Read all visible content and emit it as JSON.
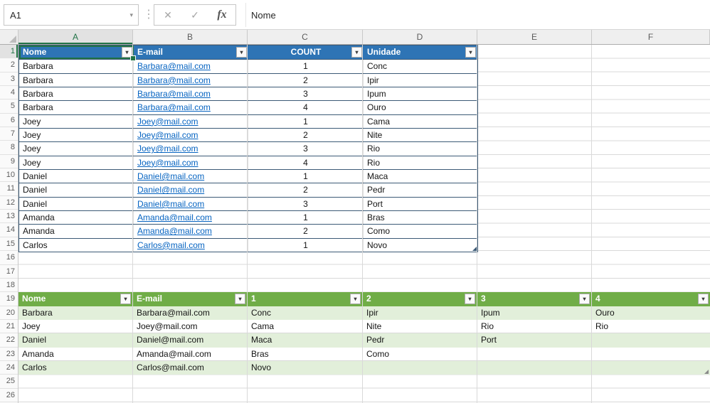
{
  "toolbar": {
    "name_box_value": "A1",
    "formula_value": "Nome",
    "cancel_label": "✕",
    "confirm_label": "✓",
    "insert_function_label": "fx"
  },
  "icons": {
    "dropdown_arrow": "▾"
  },
  "sheet": {
    "columns": [
      "A",
      "B",
      "C",
      "D",
      "E",
      "F"
    ],
    "row_count": 26,
    "selected_column": "A",
    "selected_row": 1,
    "selected_cell": "A1"
  },
  "colors": {
    "table1_header": "#2E74B5",
    "table1_border": "#3C5A76",
    "table2_header": "#70AD47",
    "table2_band": "#E2EFDA",
    "hyperlink": "#0563C1",
    "selection": "#217346",
    "gridline": "#D9D9D9"
  },
  "table1": {
    "headers": [
      {
        "label": "Nome"
      },
      {
        "label": "E-mail"
      },
      {
        "label": "COUNT"
      },
      {
        "label": "Unidade"
      }
    ],
    "rows": [
      {
        "nome": "Barbara",
        "email": "Barbara@mail.com",
        "count": "1",
        "unidade": "Conc"
      },
      {
        "nome": "Barbara",
        "email": "Barbara@mail.com",
        "count": "2",
        "unidade": "Ipir"
      },
      {
        "nome": "Barbara",
        "email": "Barbara@mail.com",
        "count": "3",
        "unidade": "Ipum"
      },
      {
        "nome": "Barbara",
        "email": "Barbara@mail.com",
        "count": "4",
        "unidade": "Ouro"
      },
      {
        "nome": "Joey",
        "email": "Joey@mail.com",
        "count": "1",
        "unidade": "Cama"
      },
      {
        "nome": "Joey",
        "email": "Joey@mail.com",
        "count": "2",
        "unidade": "Nite"
      },
      {
        "nome": "Joey",
        "email": "Joey@mail.com",
        "count": "3",
        "unidade": "Rio"
      },
      {
        "nome": "Joey",
        "email": "Joey@mail.com",
        "count": "4",
        "unidade": "Rio"
      },
      {
        "nome": "Daniel",
        "email": "Daniel@mail.com",
        "count": "1",
        "unidade": "Maca"
      },
      {
        "nome": "Daniel",
        "email": "Daniel@mail.com",
        "count": "2",
        "unidade": "Pedr"
      },
      {
        "nome": "Daniel",
        "email": "Daniel@mail.com",
        "count": "3",
        "unidade": "Port"
      },
      {
        "nome": "Amanda",
        "email": "Amanda@mail.com",
        "count": "1",
        "unidade": "Bras"
      },
      {
        "nome": "Amanda",
        "email": "Amanda@mail.com",
        "count": "2",
        "unidade": "Como"
      },
      {
        "nome": "Carlos",
        "email": "Carlos@mail.com",
        "count": "1",
        "unidade": "Novo"
      }
    ]
  },
  "table2": {
    "headers": [
      "Nome",
      "E-mail",
      "1",
      "2",
      "3",
      "4"
    ],
    "rows": [
      [
        "Barbara",
        "Barbara@mail.com",
        "Conc",
        "Ipir",
        "Ipum",
        "Ouro"
      ],
      [
        "Joey",
        "Joey@mail.com",
        "Cama",
        "Nite",
        "Rio",
        "Rio"
      ],
      [
        "Daniel",
        "Daniel@mail.com",
        "Maca",
        "Pedr",
        "Port",
        ""
      ],
      [
        "Amanda",
        "Amanda@mail.com",
        "Bras",
        "Como",
        "",
        ""
      ],
      [
        "Carlos",
        "Carlos@mail.com",
        "Novo",
        "",
        "",
        ""
      ]
    ]
  }
}
